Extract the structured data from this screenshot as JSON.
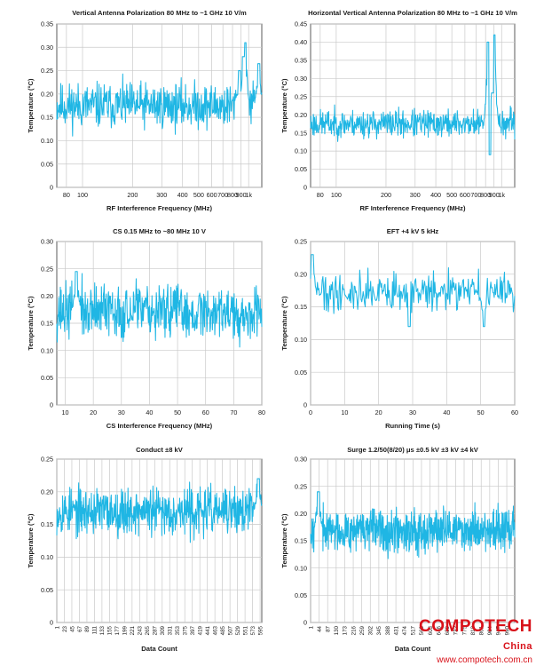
{
  "watermark": {
    "brand": "COMPOTECH",
    "region": "China",
    "site": "www.compotech.com.cn"
  },
  "colors": {
    "trace": "#1fb6e4",
    "grid": "#c9c9c9",
    "axis": "#333333"
  },
  "chart_data": [
    {
      "id": "c1",
      "type": "line",
      "title": "Vertical Antenna Polarization 80 MHz to ~1 GHz 10 V/m",
      "xlabel": "RF Interference Frequency (MHz)",
      "ylabel": "Temperature (°C)",
      "xscale": "log",
      "xlim": [
        70,
        1200
      ],
      "ylim": [
        0,
        0.35
      ],
      "xticks": [
        80,
        100,
        200,
        300,
        400,
        500,
        600,
        700,
        800,
        900,
        1000
      ],
      "xtick_labels": [
        "80",
        "100",
        "200",
        "300",
        "400",
        "500",
        "600",
        "700",
        "800",
        "900",
        "1k"
      ],
      "yticks": [
        0,
        0.05,
        0.1,
        0.15,
        0.2,
        0.25,
        0.3,
        0.35
      ],
      "ytick_labels": [
        "0",
        "0.05",
        "0.10",
        "0.15",
        "0.20",
        "0.25",
        "0.30",
        "0.35"
      ],
      "grid": true,
      "series": [
        {
          "mean": 0.175,
          "spread": 0.038,
          "points": 520,
          "seed": 11,
          "features": [
            {
              "x": 950,
              "value": 0.31
            },
            {
              "x": 930,
              "value": 0.28
            },
            {
              "x": 880,
              "value": 0.25
            },
            {
              "x": 1150,
              "value": 0.265
            }
          ]
        }
      ]
    },
    {
      "id": "c2",
      "type": "line",
      "title": "Horizontal Vertical Antenna Polarization 80 MHz to ~1 GHz 10 V/m",
      "xlabel": "RF Interference Frequency (MHz)",
      "ylabel": "Temperature (°C)",
      "xscale": "log",
      "xlim": [
        70,
        1200
      ],
      "ylim": [
        0,
        0.45
      ],
      "xticks": [
        80,
        100,
        200,
        300,
        400,
        500,
        600,
        700,
        800,
        900,
        1000
      ],
      "xtick_labels": [
        "80",
        "100",
        "200",
        "300",
        "400",
        "500",
        "600",
        "700",
        "800",
        "900",
        "1k"
      ],
      "yticks": [
        0,
        0.05,
        0.1,
        0.15,
        0.2,
        0.25,
        0.3,
        0.35,
        0.4,
        0.45
      ],
      "ytick_labels": [
        "0",
        "0.05",
        "0.10",
        "0.15",
        "0.20",
        "0.25",
        "0.30",
        "0.35",
        "0.40",
        "0.45"
      ],
      "grid": true,
      "series": [
        {
          "mean": 0.175,
          "spread": 0.03,
          "points": 520,
          "seed": 23,
          "features": [
            {
              "x": 830,
              "value": 0.4
            },
            {
              "x": 900,
              "value": 0.42
            },
            {
              "x": 880,
              "value": 0.26
            },
            {
              "x": 850,
              "value": 0.09
            }
          ]
        }
      ]
    },
    {
      "id": "c3",
      "type": "line",
      "title": "CS 0.15 MHz to ~80 MHz 10 V",
      "xlabel": "CS Interference Frequency (MHz)",
      "ylabel": "Temperature (°C)",
      "xscale": "linear",
      "xlim": [
        7,
        80
      ],
      "ylim": [
        0,
        0.3
      ],
      "xticks": [
        10,
        20,
        30,
        40,
        50,
        60,
        70,
        80
      ],
      "xtick_labels": [
        "10",
        "20",
        "30",
        "40",
        "50",
        "60",
        "70",
        "80"
      ],
      "yticks": [
        0,
        0.05,
        0.1,
        0.15,
        0.2,
        0.25,
        0.3
      ],
      "ytick_labels": [
        "0",
        "0.05",
        "0.10",
        "0.15",
        "0.20",
        "0.25",
        "0.30"
      ],
      "grid": true,
      "series": [
        {
          "mean": 0.172,
          "spread": 0.04,
          "points": 520,
          "seed": 37,
          "features": [
            {
              "x": 14,
              "value": 0.245
            }
          ]
        }
      ]
    },
    {
      "id": "c4",
      "type": "line",
      "title": "EFT +4 kV 5 kHz",
      "xlabel": "Running Time (s)",
      "ylabel": "Temperature (°C)",
      "xscale": "linear",
      "xlim": [
        0,
        60
      ],
      "ylim": [
        0,
        0.25
      ],
      "xticks": [
        0,
        10,
        20,
        30,
        40,
        50,
        60
      ],
      "xtick_labels": [
        "0",
        "10",
        "20",
        "30",
        "40",
        "50",
        "60"
      ],
      "yticks": [
        0,
        0.05,
        0.1,
        0.15,
        0.2,
        0.25
      ],
      "ytick_labels": [
        "0",
        "0.05",
        "0.10",
        "0.15",
        "0.20",
        "0.25"
      ],
      "grid": true,
      "series": [
        {
          "mean": 0.172,
          "spread": 0.022,
          "points": 300,
          "seed": 41,
          "features": [
            {
              "x": 0.5,
              "value": 0.23
            },
            {
              "x": 29,
              "value": 0.12
            },
            {
              "x": 51,
              "value": 0.12
            }
          ]
        }
      ]
    },
    {
      "id": "c5",
      "type": "line",
      "title": "Conduct ±8 kV",
      "xlabel": "Data Count",
      "ylabel": "Temperature (°C)",
      "xscale": "linear",
      "xlim": [
        1,
        600
      ],
      "ylim": [
        0,
        0.25
      ],
      "xticks": [
        1,
        23,
        45,
        67,
        89,
        111,
        133,
        155,
        177,
        199,
        221,
        243,
        265,
        287,
        309,
        331,
        353,
        375,
        397,
        419,
        441,
        463,
        485,
        507,
        529,
        551,
        573,
        595
      ],
      "xtick_labels": [
        "1",
        "23",
        "45",
        "67",
        "89",
        "111",
        "133",
        "155",
        "177",
        "199",
        "221",
        "243",
        "265",
        "287",
        "309",
        "331",
        "353",
        "375",
        "397",
        "419",
        "441",
        "463",
        "485",
        "507",
        "529",
        "551",
        "573",
        "595"
      ],
      "yticks": [
        0,
        0.05,
        0.1,
        0.15,
        0.2,
        0.25
      ],
      "ytick_labels": [
        "0",
        "0.05",
        "0.10",
        "0.15",
        "0.20",
        "0.25"
      ],
      "grid": true,
      "series": [
        {
          "mean": 0.17,
          "spread": 0.028,
          "points": 600,
          "seed": 53,
          "features": [
            {
              "x": 590,
              "value": 0.22
            }
          ]
        }
      ]
    },
    {
      "id": "c6",
      "type": "line",
      "title": "Surge 1.2/50(8/20) μs ±0.5 kV ±3 kV ±4 kV",
      "xlabel": "Data Count",
      "ylabel": "Temperature (°C)",
      "xscale": "linear",
      "xlim": [
        1,
        1030
      ],
      "ylim": [
        0,
        0.3
      ],
      "xticks": [
        1,
        44,
        87,
        130,
        173,
        216,
        259,
        302,
        345,
        388,
        431,
        474,
        517,
        560,
        603,
        646,
        689,
        732,
        775,
        818,
        861,
        904,
        947,
        990
      ],
      "xtick_labels": [
        "1",
        "44",
        "87",
        "130",
        "173",
        "216",
        "259",
        "302",
        "345",
        "388",
        "431",
        "474",
        "517",
        "560",
        "603",
        "646",
        "689",
        "732",
        "775",
        "818",
        "861",
        "904",
        "947",
        "990"
      ],
      "yticks": [
        0,
        0.05,
        0.1,
        0.15,
        0.2,
        0.25,
        0.3
      ],
      "ytick_labels": [
        "0",
        "0.05",
        "0.10",
        "0.15",
        "0.20",
        "0.25",
        "0.30"
      ],
      "grid": true,
      "series": [
        {
          "mean": 0.17,
          "spread": 0.03,
          "points": 760,
          "seed": 67,
          "features": [
            {
              "x": 40,
              "value": 0.24
            }
          ]
        }
      ]
    }
  ]
}
